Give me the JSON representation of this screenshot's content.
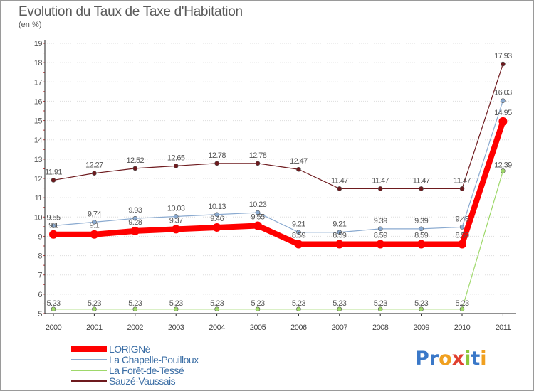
{
  "title": "Evolution du Taux de Taxe d'Habitation",
  "subtitle": "(en %)",
  "logo": {
    "text": "Proxiti",
    "letters": [
      {
        "ch": "P",
        "color": "#3a78c8"
      },
      {
        "ch": "r",
        "color": "#3a78c8"
      },
      {
        "ch": "o",
        "color": "#f0a020"
      },
      {
        "ch": "x",
        "color": "#e04030"
      },
      {
        "ch": "i",
        "color": "#8cc83c"
      },
      {
        "ch": "t",
        "color": "#3a78c8"
      },
      {
        "ch": "i",
        "color": "#f0a020"
      }
    ]
  },
  "chart_data": {
    "type": "line",
    "title": "Evolution du Taux de Taxe d'Habitation",
    "ylabel": "(en %)",
    "xlabel": "",
    "categories": [
      "2000",
      "2001",
      "2002",
      "2003",
      "2004",
      "2005",
      "2006",
      "2007",
      "2008",
      "2009",
      "2010",
      "2011"
    ],
    "ylim": [
      5,
      19
    ],
    "yticks": [
      "5",
      "6",
      "7",
      "8",
      "9",
      "10",
      "11",
      "12",
      "13",
      "14",
      "15",
      "16",
      "17",
      "18",
      "19"
    ],
    "grid": "horizontal dotted",
    "legend_position": "bottom-left",
    "series": [
      {
        "name": "Sauzé-Vaussais",
        "color": "#6e1a1e",
        "values": [
          11.91,
          12.27,
          12.52,
          12.65,
          12.78,
          12.78,
          12.47,
          11.47,
          11.47,
          11.47,
          11.47,
          17.93
        ],
        "labels": [
          "11.91",
          "12.27",
          "12.52",
          "12.65",
          "12.78",
          "12.78",
          "12.47",
          "11.47",
          "11.47",
          "11.47",
          "11.47",
          "17.93"
        ]
      },
      {
        "name": "La Chapelle-Pouilloux",
        "color": "#8aaad0",
        "values": [
          9.55,
          9.74,
          9.93,
          10.03,
          10.13,
          10.23,
          9.21,
          9.21,
          9.39,
          9.39,
          9.48,
          16.03
        ],
        "labels": [
          "9.55",
          "9.74",
          "9.93",
          "10.03",
          "10.13",
          "10.23",
          "9.21",
          "9.21",
          "9.39",
          "9.39",
          "9.48",
          "16.03"
        ]
      },
      {
        "name": "La Forêt-de-Tessé",
        "color": "#9ed86a",
        "values": [
          5.23,
          5.23,
          5.23,
          5.23,
          5.23,
          5.23,
          5.23,
          5.23,
          5.23,
          5.23,
          5.23,
          12.39
        ],
        "labels": [
          "5.23",
          "5.23",
          "5.23",
          "5.23",
          "5.23",
          "5.23",
          "5.23",
          "5.23",
          "5.23",
          "5.23",
          "5.23",
          "12.39"
        ]
      },
      {
        "name": "LORIGNé",
        "color": "#ff0000",
        "values": [
          9.1,
          9.1,
          9.28,
          9.37,
          9.46,
          9.55,
          8.59,
          8.59,
          8.59,
          8.59,
          8.59,
          14.95
        ],
        "labels": [
          "9.1",
          "9.1",
          "9.28",
          "9.37",
          "9.46",
          "9.55",
          "8.59",
          "8.59",
          "8.59",
          "8.59",
          "8.59",
          "14.95"
        ]
      }
    ]
  },
  "legend": [
    {
      "name": "LORIGNé",
      "color": "#ff0000"
    },
    {
      "name": "La Chapelle-Pouilloux",
      "color": "#8aaad0"
    },
    {
      "name": "La Forêt-de-Tessé",
      "color": "#9ed86a"
    },
    {
      "name": "Sauzé-Vaussais",
      "color": "#6e1a1e"
    }
  ]
}
